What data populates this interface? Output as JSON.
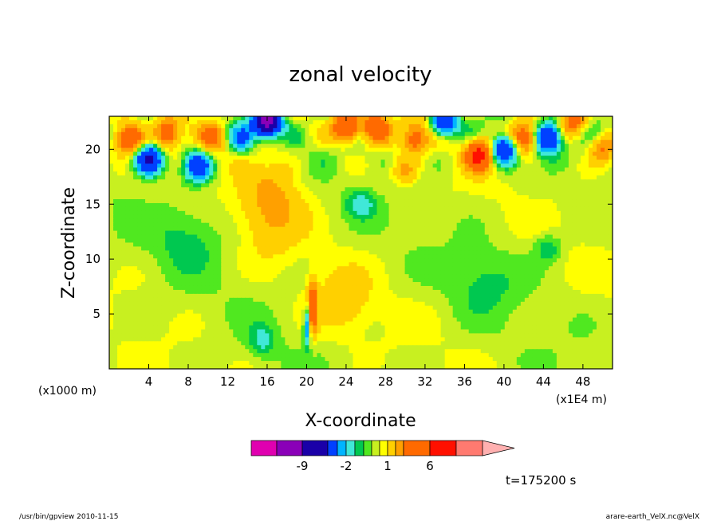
{
  "chart_data": {
    "type": "heatmap",
    "title": "zonal velocity",
    "xlabel": "X-coordinate",
    "ylabel": "Z-coordinate",
    "x_unit_left": "(x1000 m)",
    "x_unit_right": "(x1E4 m)",
    "x_ticks": [
      4,
      8,
      12,
      16,
      20,
      24,
      28,
      32,
      36,
      40,
      44,
      48
    ],
    "y_ticks": [
      5,
      10,
      15,
      20
    ],
    "xlim": [
      0,
      51
    ],
    "ylim": [
      0,
      23
    ],
    "colorbar": {
      "labels": [
        "-9",
        "-2",
        "1",
        "6"
      ],
      "label_values": [
        -9,
        -2,
        1,
        6
      ],
      "levels": [
        -12,
        -9,
        -6,
        -3,
        -2,
        -1,
        -0.5,
        0,
        0.5,
        1,
        2,
        3,
        6,
        9,
        12
      ],
      "colors": [
        "#e000b0",
        "#8a00b8",
        "#1a00a8",
        "#0040ff",
        "#00b4ff",
        "#40e8d8",
        "#00c850",
        "#50e820",
        "#c8f020",
        "#ffff00",
        "#ffd000",
        "#ffa000",
        "#ff6a00",
        "#ff1000",
        "#ff7a70",
        "#ffb0b0"
      ]
    },
    "timestamp": "t=175200 s",
    "field_summary": [
      {
        "region": "upper layer z>17",
        "pattern": "alternating orange and blue cells",
        "range": [
          -9,
          6
        ]
      },
      {
        "region": "x 13-20, z 10-19",
        "pattern": "broad orange plume",
        "value": 2
      },
      {
        "region": "x 20-21, z 0-8",
        "pattern": "narrow strong vertical jet",
        "range": [
          -6,
          6
        ]
      },
      {
        "region": "mid and lower layer",
        "pattern": "mostly yellow and green",
        "range": [
          -1,
          1
        ]
      }
    ]
  },
  "footer": {
    "left": "/usr/bin/gpview  2010-11-15",
    "right": "arare-earth_VelX.nc@VelX"
  }
}
